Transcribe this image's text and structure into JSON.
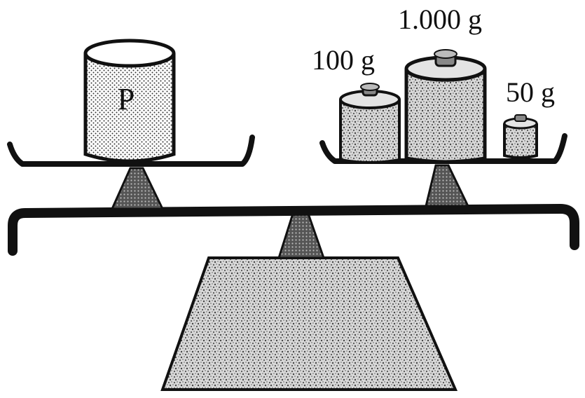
{
  "diagram": {
    "object_label": "P",
    "weights": [
      {
        "label": "1.000 g"
      },
      {
        "label": "100 g"
      },
      {
        "label": "50 g"
      }
    ],
    "colors": {
      "ink": "#111111",
      "fill_light": "#dcdcdc",
      "fill_dark": "#555555"
    }
  }
}
